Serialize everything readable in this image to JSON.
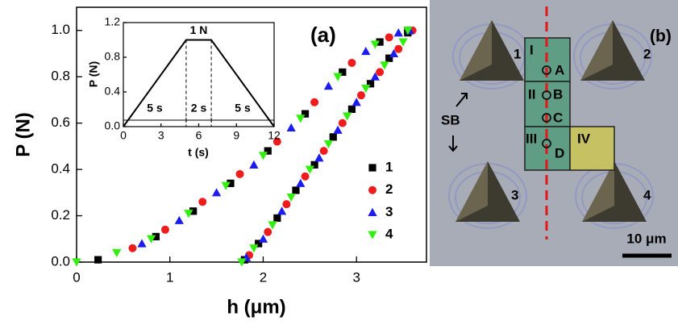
{
  "chart_data": [
    {
      "type": "scatter",
      "panel_label": "(a)",
      "x_label": "h (μm)",
      "y_label": "P (N)",
      "xlim": [
        0,
        3.75
      ],
      "ylim": [
        0,
        1.1
      ],
      "xticks": [
        0,
        1,
        2,
        3
      ],
      "yticks": [
        {
          "value": 0,
          "label": "0.0"
        },
        {
          "value": 0.2,
          "label": "0.2"
        },
        {
          "value": 0.4,
          "label": "0.4"
        },
        {
          "value": 0.6,
          "label": "0.6"
        },
        {
          "value": 0.8,
          "label": "0.8"
        },
        {
          "value": 1,
          "label": "1.0"
        }
      ],
      "legend": "lower right",
      "series": [
        {
          "name": "1",
          "color": "#000000",
          "marker": "square",
          "x": [
            0.23,
            0.85,
            1.25,
            1.65,
            2.05,
            2.45,
            2.85,
            3.25,
            3.55,
            1.8,
            1.95,
            2.15,
            2.35,
            2.55,
            2.75,
            2.95,
            3.15,
            3.35,
            3.55
          ],
          "values": [
            0.01,
            0.11,
            0.22,
            0.34,
            0.48,
            0.64,
            0.82,
            0.95,
            1.0,
            0.01,
            0.08,
            0.19,
            0.31,
            0.42,
            0.54,
            0.66,
            0.77,
            0.88,
            0.99
          ]
        },
        {
          "name": "2",
          "color": "#ee1c1c",
          "marker": "circle",
          "x": [
            0.6,
            0.95,
            1.35,
            1.75,
            2.15,
            2.55,
            2.95,
            3.35,
            1.85,
            2.05,
            2.25,
            2.45,
            2.65,
            2.85,
            3.05,
            3.25,
            3.45,
            3.6
          ],
          "values": [
            0.06,
            0.14,
            0.26,
            0.38,
            0.52,
            0.69,
            0.86,
            0.97,
            0.03,
            0.13,
            0.25,
            0.37,
            0.48,
            0.6,
            0.72,
            0.82,
            0.92,
            1.0
          ]
        },
        {
          "name": "3",
          "color": "#1c1cee",
          "marker": "triangle-up",
          "x": [
            0.7,
            1.1,
            1.5,
            1.9,
            2.3,
            2.7,
            3.1,
            3.45,
            1.82,
            2.0,
            2.2,
            2.4,
            2.6,
            2.8,
            3.0,
            3.2,
            3.4,
            3.57
          ],
          "values": [
            0.08,
            0.18,
            0.3,
            0.42,
            0.58,
            0.76,
            0.91,
            0.99,
            0.02,
            0.1,
            0.22,
            0.34,
            0.45,
            0.57,
            0.69,
            0.8,
            0.9,
            1.0
          ]
        },
        {
          "name": "4",
          "color": "#33ee11",
          "marker": "triangle-down",
          "x": [
            0.0,
            0.43,
            0.8,
            1.2,
            1.6,
            2.0,
            2.4,
            2.8,
            3.2,
            3.55,
            1.77,
            1.9,
            2.1,
            2.3,
            2.5,
            2.7,
            2.9,
            3.1,
            3.3,
            3.5
          ],
          "values": [
            0.0,
            0.04,
            0.1,
            0.21,
            0.33,
            0.46,
            0.62,
            0.8,
            0.94,
            1.0,
            0.0,
            0.06,
            0.16,
            0.28,
            0.4,
            0.51,
            0.63,
            0.75,
            0.85,
            0.95
          ]
        }
      ]
    },
    {
      "type": "line",
      "x_label": "t (s)",
      "y_label": "P (N)",
      "xlim": [
        0,
        12
      ],
      "ylim": [
        0,
        1.2
      ],
      "xticks": [
        0,
        3,
        6,
        9,
        12
      ],
      "yticks": [
        {
          "value": 0,
          "label": "0.0"
        },
        {
          "value": 0.4,
          "label": "0.4"
        },
        {
          "value": 0.8,
          "label": "0.8"
        },
        {
          "value": 1.2,
          "label": "1.2"
        }
      ],
      "x": [
        0,
        5,
        7,
        12
      ],
      "values": [
        0,
        1,
        1,
        0
      ],
      "color": "#000000",
      "annotations": [
        "1 N",
        "5 s",
        "2 s",
        "5 s"
      ]
    }
  ],
  "micrograph": {
    "panel_label": "(b)",
    "indents": [
      "1",
      "2",
      "3",
      "4"
    ],
    "regions": [
      "I",
      "II",
      "III",
      "IV"
    ],
    "points": [
      "A",
      "B",
      "C",
      "D"
    ],
    "sb_label": "SB",
    "scale_bar": "10 μm"
  }
}
